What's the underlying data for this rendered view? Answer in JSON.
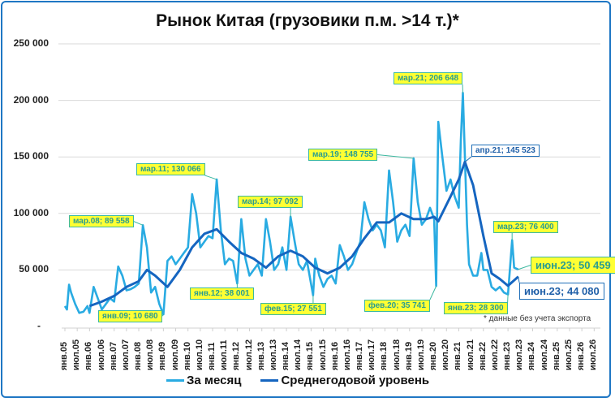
{
  "chart_data": {
    "type": "line",
    "title": "Рынок Китая (грузовики п.м. >14 т.)*",
    "footnote": "* данные без учета экспорта",
    "ylim": [
      0,
      250000
    ],
    "y_ticks": [
      "-",
      "50 000",
      "100 000",
      "150 000",
      "200 000",
      "250 000"
    ],
    "x_ticks": [
      "янв.05",
      "июл.05",
      "янв.06",
      "июл.06",
      "янв.07",
      "июл.07",
      "янв.08",
      "июл.08",
      "янв.09",
      "июл.09",
      "янв.10",
      "июл.10",
      "янв.11",
      "июл.11",
      "янв.12",
      "июл.12",
      "янв.13",
      "июл.13",
      "янв.14",
      "июл.14",
      "янв.15",
      "июл.15",
      "янв.16",
      "июл.16",
      "янв.17",
      "июл.17",
      "янв.18",
      "июл.18",
      "янв.19",
      "июл.19",
      "янв.20",
      "июл.20",
      "янв.21",
      "июл.21",
      "янв.22",
      "июл.22",
      "янв.23",
      "июл.23",
      "янв.24",
      "июл.24",
      "янв.25",
      "июл.25",
      "янв.26",
      "июл.26"
    ],
    "xlim": [
      "2005-01",
      "2026-07"
    ],
    "grid": true,
    "legend_position": "bottom",
    "colors": {
      "monthly": "#29abe2",
      "average": "#1565c0"
    },
    "series": [
      {
        "name": "За месяц",
        "points": [
          [
            "2005-01",
            18000
          ],
          [
            "2005-02",
            15000
          ],
          [
            "2005-03",
            37000
          ],
          [
            "2005-04",
            30000
          ],
          [
            "2005-06",
            20000
          ],
          [
            "2005-08",
            12000
          ],
          [
            "2005-10",
            13000
          ],
          [
            "2005-12",
            18000
          ],
          [
            "2006-01",
            12000
          ],
          [
            "2006-03",
            35000
          ],
          [
            "2006-05",
            25000
          ],
          [
            "2006-07",
            15000
          ],
          [
            "2006-09",
            20000
          ],
          [
            "2006-11",
            25000
          ],
          [
            "2007-01",
            22000
          ],
          [
            "2007-03",
            53000
          ],
          [
            "2007-05",
            45000
          ],
          [
            "2007-07",
            32000
          ],
          [
            "2007-09",
            33000
          ],
          [
            "2007-11",
            35000
          ],
          [
            "2008-01",
            38000
          ],
          [
            "2008-03",
            89558
          ],
          [
            "2008-05",
            70000
          ],
          [
            "2008-07",
            30000
          ],
          [
            "2008-09",
            35000
          ],
          [
            "2008-11",
            20000
          ],
          [
            "2009-01",
            10680
          ],
          [
            "2009-03",
            58000
          ],
          [
            "2009-05",
            62000
          ],
          [
            "2009-07",
            55000
          ],
          [
            "2009-09",
            60000
          ],
          [
            "2009-11",
            65000
          ],
          [
            "2010-01",
            70000
          ],
          [
            "2010-03",
            117000
          ],
          [
            "2010-05",
            100000
          ],
          [
            "2010-07",
            70000
          ],
          [
            "2010-09",
            75000
          ],
          [
            "2010-11",
            80000
          ],
          [
            "2011-01",
            78000
          ],
          [
            "2011-03",
            130066
          ],
          [
            "2011-05",
            85000
          ],
          [
            "2011-07",
            55000
          ],
          [
            "2011-09",
            60000
          ],
          [
            "2011-11",
            58000
          ],
          [
            "2012-01",
            38001
          ],
          [
            "2012-03",
            95000
          ],
          [
            "2012-05",
            60000
          ],
          [
            "2012-07",
            45000
          ],
          [
            "2012-09",
            50000
          ],
          [
            "2012-11",
            55000
          ],
          [
            "2013-01",
            45000
          ],
          [
            "2013-03",
            95000
          ],
          [
            "2013-05",
            75000
          ],
          [
            "2013-07",
            50000
          ],
          [
            "2013-09",
            55000
          ],
          [
            "2013-11",
            70000
          ],
          [
            "2014-01",
            50000
          ],
          [
            "2014-03",
            97092
          ],
          [
            "2014-05",
            75000
          ],
          [
            "2014-07",
            55000
          ],
          [
            "2014-09",
            50000
          ],
          [
            "2014-11",
            58000
          ],
          [
            "2015-02",
            27551
          ],
          [
            "2015-03",
            60000
          ],
          [
            "2015-05",
            45000
          ],
          [
            "2015-07",
            35000
          ],
          [
            "2015-09",
            42000
          ],
          [
            "2015-11",
            45000
          ],
          [
            "2016-01",
            38000
          ],
          [
            "2016-03",
            72000
          ],
          [
            "2016-05",
            62000
          ],
          [
            "2016-07",
            50000
          ],
          [
            "2016-09",
            55000
          ],
          [
            "2016-11",
            65000
          ],
          [
            "2017-01",
            75000
          ],
          [
            "2017-03",
            110000
          ],
          [
            "2017-05",
            95000
          ],
          [
            "2017-07",
            85000
          ],
          [
            "2017-09",
            90000
          ],
          [
            "2017-11",
            85000
          ],
          [
            "2018-01",
            70000
          ],
          [
            "2018-03",
            138000
          ],
          [
            "2018-05",
            110000
          ],
          [
            "2018-07",
            75000
          ],
          [
            "2018-09",
            85000
          ],
          [
            "2018-11",
            90000
          ],
          [
            "2019-01",
            80000
          ],
          [
            "2019-03",
            148755
          ],
          [
            "2019-05",
            110000
          ],
          [
            "2019-07",
            90000
          ],
          [
            "2019-09",
            95000
          ],
          [
            "2019-11",
            105000
          ],
          [
            "2020-01",
            95000
          ],
          [
            "2020-02",
            35741
          ],
          [
            "2020-03",
            181000
          ],
          [
            "2020-05",
            150000
          ],
          [
            "2020-07",
            120000
          ],
          [
            "2020-09",
            130000
          ],
          [
            "2020-11",
            115000
          ],
          [
            "2021-01",
            105000
          ],
          [
            "2021-02",
            165000
          ],
          [
            "2021-03",
            206648
          ],
          [
            "2021-04",
            150000
          ],
          [
            "2021-05",
            90000
          ],
          [
            "2021-06",
            55000
          ],
          [
            "2021-08",
            45000
          ],
          [
            "2021-10",
            45000
          ],
          [
            "2021-12",
            65000
          ],
          [
            "2022-01",
            50000
          ],
          [
            "2022-03",
            50000
          ],
          [
            "2022-05",
            35000
          ],
          [
            "2022-07",
            32000
          ],
          [
            "2022-09",
            35000
          ],
          [
            "2022-11",
            30000
          ],
          [
            "2023-01",
            28300
          ],
          [
            "2023-03",
            76400
          ],
          [
            "2023-04",
            52000
          ],
          [
            "2023-06",
            50459
          ]
        ]
      },
      {
        "name": "Среднегодовой уровень",
        "points": [
          [
            "2006-01",
            18000
          ],
          [
            "2006-07",
            22000
          ],
          [
            "2007-01",
            27000
          ],
          [
            "2007-07",
            35000
          ],
          [
            "2008-01",
            40000
          ],
          [
            "2008-05",
            50000
          ],
          [
            "2008-09",
            45000
          ],
          [
            "2009-03",
            35000
          ],
          [
            "2009-09",
            50000
          ],
          [
            "2010-03",
            70000
          ],
          [
            "2010-09",
            82000
          ],
          [
            "2011-03",
            86000
          ],
          [
            "2011-09",
            75000
          ],
          [
            "2012-03",
            65000
          ],
          [
            "2012-09",
            60000
          ],
          [
            "2013-03",
            52000
          ],
          [
            "2013-09",
            62000
          ],
          [
            "2014-03",
            67000
          ],
          [
            "2014-09",
            62000
          ],
          [
            "2015-03",
            52000
          ],
          [
            "2015-09",
            47000
          ],
          [
            "2016-03",
            52000
          ],
          [
            "2016-09",
            62000
          ],
          [
            "2017-03",
            78000
          ],
          [
            "2017-09",
            92000
          ],
          [
            "2018-03",
            92000
          ],
          [
            "2018-09",
            100000
          ],
          [
            "2019-03",
            95000
          ],
          [
            "2019-09",
            95000
          ],
          [
            "2020-01",
            97000
          ],
          [
            "2020-03",
            93000
          ],
          [
            "2020-09",
            115000
          ],
          [
            "2021-01",
            130000
          ],
          [
            "2021-04",
            145523
          ],
          [
            "2021-08",
            125000
          ],
          [
            "2022-01",
            80000
          ],
          [
            "2022-05",
            47000
          ],
          [
            "2022-09",
            42000
          ],
          [
            "2023-01",
            36000
          ],
          [
            "2023-06",
            44080
          ]
        ]
      }
    ],
    "annotations": [
      {
        "text": "мар.08;  89 558",
        "date": "2008-03",
        "value": 89558,
        "series": 0
      },
      {
        "text": "янв.09;  10 680",
        "date": "2009-01",
        "value": 10680,
        "series": 0
      },
      {
        "text": "мар.11;  130 066",
        "date": "2011-03",
        "value": 130066,
        "series": 0
      },
      {
        "text": "янв.12;  38 001",
        "date": "2012-01",
        "value": 38001,
        "series": 0
      },
      {
        "text": "мар.14;  97 092",
        "date": "2014-03",
        "value": 97092,
        "series": 0
      },
      {
        "text": "фев.15;  27 551",
        "date": "2015-02",
        "value": 27551,
        "series": 0
      },
      {
        "text": "мар.19; 148 755",
        "date": "2019-03",
        "value": 148755,
        "series": 0
      },
      {
        "text": "фев.20; 35 741",
        "date": "2020-02",
        "value": 35741,
        "series": 0
      },
      {
        "text": "мар.21;  206 648",
        "date": "2021-03",
        "value": 206648,
        "series": 0
      },
      {
        "text": "апр.21;  145 523",
        "date": "2021-04",
        "value": 145523,
        "series": 1
      },
      {
        "text": "янв.23; 28 300",
        "date": "2023-01",
        "value": 28300,
        "series": 0
      },
      {
        "text": "мар.23; 76 400",
        "date": "2023-03",
        "value": 76400,
        "series": 0
      },
      {
        "text": "июн.23; 50 459",
        "date": "2023-06",
        "value": 50459,
        "series": 0
      },
      {
        "text": "июн.23;  44 080",
        "date": "2023-06",
        "value": 44080,
        "series": 1
      }
    ]
  }
}
